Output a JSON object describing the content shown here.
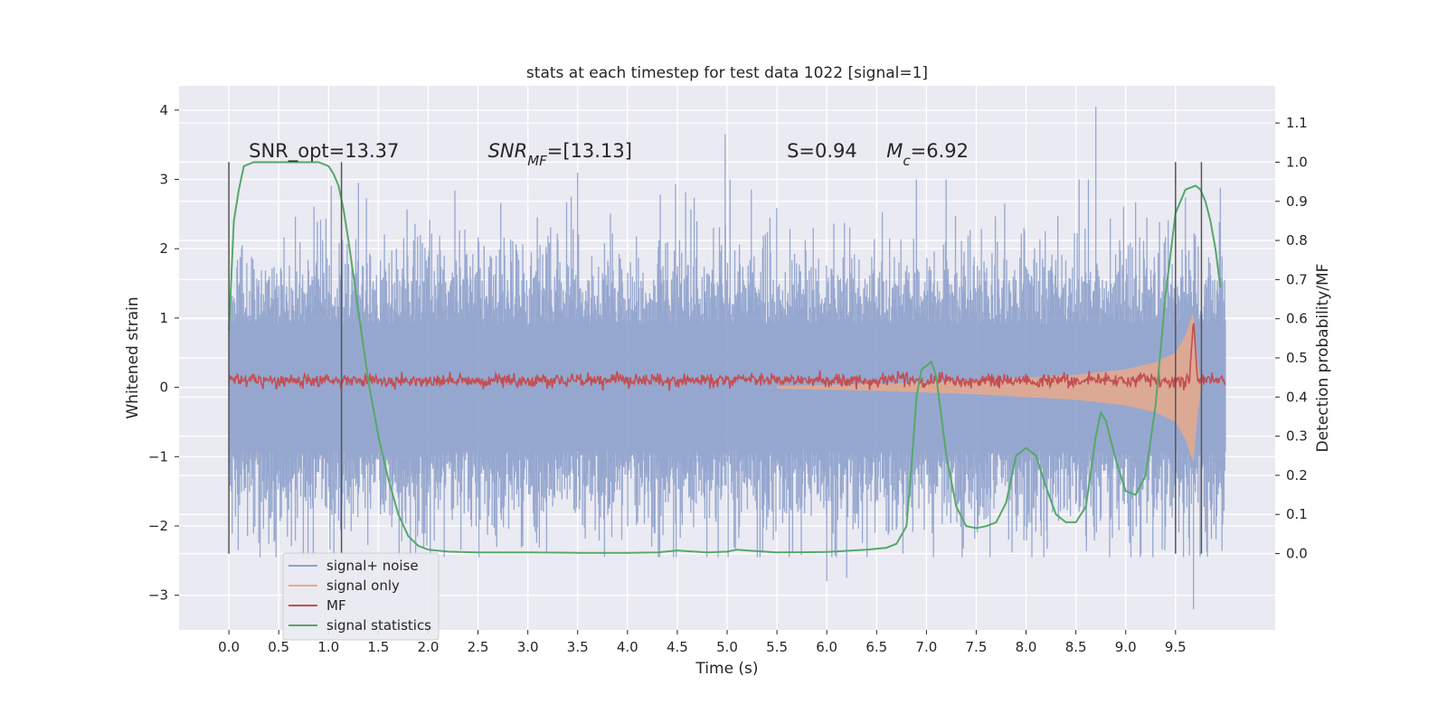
{
  "chart_data": {
    "type": "line",
    "title": "stats at each timestep for test data 1022 [signal=1]",
    "xlabel": "Time (s)",
    "ylabel": "Whitened strain",
    "y2label": "Detection probability/MF",
    "xlim": [
      -0.5,
      10.5
    ],
    "ylim": [
      -3.5,
      4.35
    ],
    "y2lim": [
      -0.195,
      1.195
    ],
    "x_ticks": [
      0.0,
      0.5,
      1.0,
      1.5,
      2.0,
      2.5,
      3.0,
      3.5,
      4.0,
      4.5,
      5.0,
      5.5,
      6.0,
      6.5,
      7.0,
      7.5,
      8.0,
      8.5,
      9.0,
      9.5
    ],
    "x_tick_labels": [
      "0.0",
      "0.5",
      "1.0",
      "1.5",
      "2.0",
      "2.5",
      "3.0",
      "3.5",
      "4.0",
      "4.5",
      "5.0",
      "5.5",
      "6.0",
      "6.5",
      "7.0",
      "7.5",
      "8.0",
      "8.5",
      "9.0",
      "9.5"
    ],
    "y_ticks": [
      -3,
      -2,
      -1,
      0,
      1,
      2,
      3,
      4
    ],
    "y_tick_labels": [
      "−3",
      "−2",
      "−1",
      "0",
      "1",
      "2",
      "3",
      "4"
    ],
    "y2_ticks": [
      0.0,
      0.1,
      0.2,
      0.3,
      0.4,
      0.5,
      0.6,
      0.7,
      0.8,
      0.9,
      1.0,
      1.1
    ],
    "y2_tick_labels": [
      "0.0",
      "0.1",
      "0.2",
      "0.3",
      "0.4",
      "0.5",
      "0.6",
      "0.7",
      "0.8",
      "0.9",
      "1.0",
      "1.1"
    ],
    "grid": true,
    "legend_position": "lower-left",
    "annotations": [
      {
        "id": "snr-opt",
        "text": "SNR_opt=13.37",
        "x": 0.2,
        "y": 3.32
      },
      {
        "id": "snr-mf",
        "text": "SNR_MF=[13.13]",
        "x": 2.6,
        "y": 3.32
      },
      {
        "id": "s-value",
        "text": "S=0.94",
        "x": 5.6,
        "y": 3.32
      },
      {
        "id": "mc-value",
        "text": "M_c=6.92",
        "x": 6.6,
        "y": 3.32
      }
    ],
    "vlines": [
      {
        "x": 0.0,
        "y_from": -2.4,
        "y_to": 3.25
      },
      {
        "x": 1.13,
        "y_from": -2.4,
        "y_to": 3.25
      },
      {
        "x": 9.5,
        "y_from": -2.4,
        "y_to": 3.25
      },
      {
        "x": 9.76,
        "y_from": -2.4,
        "y_to": 3.25
      }
    ],
    "series": [
      {
        "name": "signal+ noise",
        "color": "#8da0cb",
        "axis": "left",
        "description": "dense whitened noise, approx std 0.7, x from 0 to 10, peaks up to ~4.05 near x=8.7",
        "x_range": [
          0.0,
          10.0
        ],
        "notable_peaks": [
          [
            8.7,
            4.05
          ],
          [
            4.98,
            3.65
          ],
          [
            3.5,
            3.1
          ],
          [
            6.9,
            3.0
          ],
          [
            1.3,
            2.95
          ],
          [
            9.95,
            2.88
          ],
          [
            9.68,
            -3.2
          ],
          [
            6.0,
            -2.8
          ],
          [
            6.2,
            -2.75
          ]
        ]
      },
      {
        "name": "signal only",
        "color": "#e9a98b",
        "axis": "left",
        "description": "chirp starting ~x=5.5 growing in amplitude until merger near x=9.7",
        "envelope": {
          "x": [
            5.5,
            6.5,
            7.5,
            8.5,
            9.0,
            9.3,
            9.5,
            9.6,
            9.68,
            9.72,
            9.76
          ],
          "amplitude": [
            0.02,
            0.05,
            0.1,
            0.18,
            0.26,
            0.36,
            0.5,
            0.75,
            1.1,
            0.4,
            0.0
          ]
        }
      },
      {
        "name": "MF",
        "color": "#c44e52",
        "axis": "left",
        "description": "matched filter output around 0.1 with small noise; sharp peak 1.0 at x=9.68",
        "x_range": [
          0.0,
          10.0
        ],
        "base": 0.1,
        "peak": [
          9.68,
          1.0
        ]
      },
      {
        "name": "signal statistics",
        "color": "#55a868",
        "axis": "right",
        "x": [
          0.0,
          0.05,
          0.1,
          0.15,
          0.25,
          0.35,
          0.5,
          0.7,
          0.9,
          1.0,
          1.05,
          1.1,
          1.15,
          1.2,
          1.3,
          1.4,
          1.5,
          1.6,
          1.7,
          1.8,
          1.9,
          2.0,
          2.2,
          2.5,
          3.0,
          3.5,
          4.0,
          4.3,
          4.5,
          4.6,
          4.8,
          5.0,
          5.1,
          5.2,
          5.5,
          6.0,
          6.4,
          6.6,
          6.7,
          6.8,
          6.85,
          6.9,
          6.95,
          7.0,
          7.05,
          7.1,
          7.2,
          7.3,
          7.4,
          7.5,
          7.6,
          7.7,
          7.8,
          7.9,
          8.0,
          8.1,
          8.2,
          8.3,
          8.4,
          8.5,
          8.6,
          8.7,
          8.75,
          8.8,
          8.9,
          9.0,
          9.1,
          9.2,
          9.3,
          9.4,
          9.5,
          9.6,
          9.7,
          9.75,
          9.8,
          9.85,
          9.9,
          9.95
        ],
        "values": [
          0.57,
          0.85,
          0.93,
          0.99,
          1.0,
          1.0,
          1.0,
          1.0,
          1.0,
          0.99,
          0.97,
          0.94,
          0.88,
          0.8,
          0.62,
          0.44,
          0.3,
          0.19,
          0.1,
          0.045,
          0.02,
          0.01,
          0.005,
          0.003,
          0.003,
          0.002,
          0.002,
          0.003,
          0.008,
          0.006,
          0.003,
          0.005,
          0.01,
          0.008,
          0.003,
          0.004,
          0.01,
          0.015,
          0.025,
          0.07,
          0.22,
          0.4,
          0.47,
          0.48,
          0.49,
          0.45,
          0.25,
          0.12,
          0.07,
          0.065,
          0.07,
          0.08,
          0.13,
          0.25,
          0.27,
          0.25,
          0.17,
          0.1,
          0.08,
          0.08,
          0.12,
          0.3,
          0.36,
          0.34,
          0.24,
          0.16,
          0.15,
          0.2,
          0.38,
          0.66,
          0.87,
          0.93,
          0.94,
          0.93,
          0.9,
          0.85,
          0.78,
          0.68
        ]
      }
    ]
  }
}
